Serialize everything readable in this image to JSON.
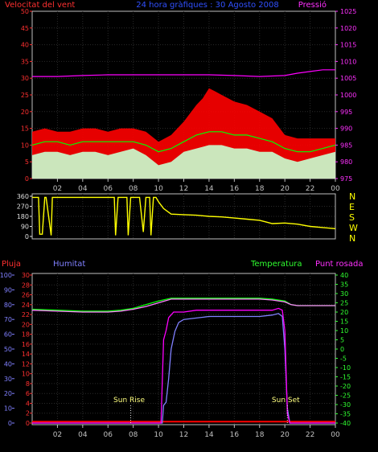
{
  "chart_data": [
    {
      "type": "line",
      "panel": "wind-speed-pressure",
      "title": "24 hora gràfiques : 30 Agosto 2008",
      "left_axis_label": "Velocitat del vent",
      "right_axis_label": "Pressió",
      "x_ticks": [
        "02",
        "04",
        "06",
        "08",
        "10",
        "12",
        "14",
        "16",
        "18",
        "20",
        "22",
        "00"
      ],
      "x_range": [
        0,
        24
      ],
      "y_left_ticks": [
        "0",
        "5",
        "10",
        "15",
        "20",
        "25",
        "30",
        "35",
        "40",
        "45",
        "50"
      ],
      "y_left_range": [
        0,
        50
      ],
      "y_right_ticks": [
        "975",
        "980",
        "985",
        "990",
        "995",
        "1000",
        "1005",
        "1010",
        "1015",
        "1020",
        "1025"
      ],
      "y_right_range": [
        975,
        1025
      ],
      "series": [
        {
          "role": "wind-gust",
          "color": "#ff0000",
          "style": "filled",
          "x": [
            0,
            1,
            2,
            3,
            4,
            5,
            6,
            7,
            8,
            9,
            10,
            11,
            12,
            13,
            13.5,
            14,
            14.5,
            15,
            16,
            17,
            18,
            19,
            20,
            21,
            22,
            23,
            24
          ],
          "y": [
            14,
            15,
            14,
            14,
            15,
            15,
            14,
            15,
            15,
            14,
            11,
            13,
            17,
            22,
            24,
            27,
            26,
            25,
            23,
            22,
            20,
            18,
            13,
            12,
            12,
            12,
            12
          ]
        },
        {
          "role": "wind-average",
          "color": "#00ff00",
          "style": "line",
          "x": [
            0,
            1,
            2,
            3,
            4,
            5,
            6,
            7,
            8,
            9,
            10,
            11,
            12,
            13,
            14,
            15,
            16,
            17,
            18,
            19,
            20,
            21,
            22,
            23,
            24
          ],
          "y": [
            10,
            11,
            11,
            10,
            11,
            11,
            11,
            11,
            11,
            10,
            8,
            9,
            11,
            13,
            14,
            14,
            13,
            13,
            12,
            11,
            9,
            8,
            8,
            9,
            10
          ]
        },
        {
          "role": "wind-minimum",
          "color": "#c8ffd0",
          "style": "filled",
          "x": [
            0,
            1,
            2,
            3,
            4,
            5,
            6,
            7,
            8,
            9,
            10,
            11,
            12,
            13,
            14,
            15,
            16,
            17,
            18,
            19,
            20,
            21,
            22,
            23,
            24
          ],
          "y": [
            7,
            8,
            8,
            7,
            8,
            8,
            7,
            8,
            9,
            7,
            4,
            5,
            8,
            9,
            10,
            10,
            9,
            9,
            8,
            8,
            6,
            5,
            6,
            7,
            8
          ]
        },
        {
          "role": "pressure",
          "color": "#ff00ff",
          "style": "line",
          "axis": "right",
          "x": [
            0,
            2,
            4,
            6,
            8,
            10,
            12,
            14,
            16,
            18,
            20,
            21,
            22,
            23,
            24
          ],
          "y": [
            1005.5,
            1005.5,
            1005.8,
            1006,
            1006,
            1006,
            1006,
            1006,
            1005.8,
            1005.5,
            1005.8,
            1006.5,
            1007,
            1007.5,
            1007.5
          ]
        }
      ]
    },
    {
      "type": "line",
      "panel": "wind-direction",
      "x_range": [
        0,
        24
      ],
      "y_left_ticks": [
        "0",
        "90",
        "180",
        "270",
        "360"
      ],
      "y_left_range": [
        0,
        360
      ],
      "y_right_ticks": [
        "N",
        "W",
        "S",
        "E",
        "N"
      ],
      "series": [
        {
          "role": "wind-direction",
          "color": "#ffff00",
          "x": [
            0,
            0.5,
            0.6,
            0.8,
            1.0,
            1.1,
            1.5,
            1.6,
            1.8,
            2,
            3,
            4,
            5,
            6,
            6.5,
            6.6,
            6.8,
            7.2,
            7.5,
            7.6,
            7.8,
            8.5,
            8.8,
            9,
            9.3,
            9.4,
            9.6,
            9.8,
            10,
            10.4,
            11,
            12,
            13,
            14,
            15,
            16,
            17,
            18,
            18.5,
            19,
            20,
            21,
            22,
            23,
            24
          ],
          "y": [
            350,
            350,
            20,
            20,
            350,
            350,
            10,
            350,
            350,
            350,
            350,
            350,
            350,
            350,
            350,
            10,
            350,
            350,
            350,
            10,
            350,
            350,
            40,
            350,
            350,
            10,
            350,
            350,
            310,
            250,
            200,
            195,
            190,
            180,
            175,
            165,
            155,
            145,
            130,
            115,
            120,
            110,
            90,
            80,
            70
          ]
        }
      ]
    },
    {
      "type": "line",
      "panel": "humidity-temperature",
      "left_axis_label_1": "Pluja",
      "left_axis_label_2": "Humitat",
      "right_axis_label_1": "Temperatura",
      "right_axis_label_2": "Punt rosada",
      "x_ticks": [
        "02",
        "04",
        "06",
        "08",
        "10",
        "12",
        "14",
        "16",
        "18",
        "20",
        "22",
        "00"
      ],
      "x_range": [
        0,
        24
      ],
      "y_rain_ticks": [
        "0",
        "10",
        "20",
        "30",
        "40",
        "50",
        "60",
        "70",
        "80",
        "90",
        "100"
      ],
      "y_rain_range": [
        0,
        100
      ],
      "y_humidity_ticks": [
        "0",
        "2",
        "4",
        "6",
        "8",
        "10",
        "12",
        "14",
        "16",
        "18",
        "20",
        "22",
        "24",
        "26",
        "28",
        "30"
      ],
      "y_humidity_range": [
        0,
        30
      ],
      "y_temp_ticks": [
        "-40",
        "-35",
        "-30",
        "-25",
        "-20",
        "-15",
        "-10",
        "-5",
        "0",
        "5",
        "10",
        "15",
        "20",
        "25",
        "30",
        "35",
        "40"
      ],
      "y_temp_range": [
        -40,
        40
      ],
      "annotations": [
        {
          "text": "Sun Rise",
          "x": 7.8
        },
        {
          "text": "Sun Set",
          "x": 20.2
        }
      ],
      "series": [
        {
          "role": "rain",
          "color": "#ff0000",
          "x": [
            0,
            24
          ],
          "y": [
            1,
            1
          ]
        },
        {
          "role": "humidity",
          "color": "#8080ff",
          "x": [
            0,
            10.3,
            10.4,
            10.6,
            10.8,
            11,
            11.3,
            11.6,
            12,
            13,
            14,
            15,
            16,
            17,
            18,
            19,
            19.5,
            19.8,
            20,
            20.2,
            20.4,
            24
          ],
          "y": [
            0,
            0,
            12,
            14,
            30,
            50,
            62,
            68,
            70,
            71,
            72,
            72,
            72,
            72,
            72,
            73,
            74,
            72,
            50,
            10,
            0,
            0
          ]
        },
        {
          "role": "dew-point",
          "color": "#ff00ff",
          "x": [
            0,
            10.2,
            10.4,
            10.6,
            10.8,
            11.2,
            12,
            13,
            14,
            15,
            16,
            17,
            18,
            19,
            19.5,
            19.8,
            20,
            20.2,
            20.4,
            24
          ],
          "y": [
            -40,
            -40,
            5,
            10,
            17,
            20,
            20,
            21,
            21,
            21,
            21,
            21,
            21,
            21,
            22,
            21,
            10,
            -35,
            -40,
            -40
          ]
        },
        {
          "role": "temperature",
          "color": "#00ff00",
          "x": [
            0,
            2,
            4,
            6,
            7,
            8,
            9,
            10,
            11,
            12,
            14,
            16,
            18,
            19,
            20,
            20.5,
            21,
            22,
            23,
            24
          ],
          "y": [
            21.5,
            21,
            20.5,
            20.5,
            21,
            22,
            24,
            26,
            27.5,
            27.5,
            27.5,
            27.5,
            27.5,
            27,
            26,
            24,
            23.5,
            23.5,
            23.5,
            23.5
          ]
        },
        {
          "role": "humidity-pct",
          "color": "#ff80ff",
          "x": [
            0,
            2,
            4,
            6,
            7,
            8,
            9,
            10,
            11,
            12,
            14,
            16,
            18,
            19,
            20,
            20.5,
            21,
            22,
            23,
            24
          ],
          "y": [
            21,
            20.5,
            20,
            20,
            20.5,
            21.5,
            23,
            25,
            27,
            27,
            27,
            27,
            27,
            26.5,
            25.5,
            24,
            23.5,
            23.5,
            23.5,
            23.5
          ]
        }
      ]
    }
  ]
}
